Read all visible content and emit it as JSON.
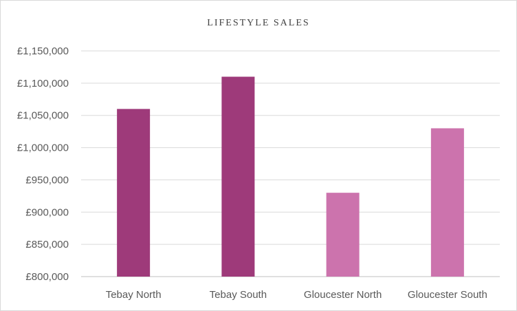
{
  "chart_data": {
    "type": "bar",
    "title": "LIFESTYLE SALES",
    "categories": [
      "Tebay North",
      "Tebay South",
      "Gloucester North",
      "Gloucester South"
    ],
    "values": [
      1060000,
      1110000,
      930000,
      1030000
    ],
    "bar_colors": [
      "#9e3a7a",
      "#9e3a7a",
      "#cc73ad",
      "#cc73ad"
    ],
    "ylim": [
      800000,
      1150000
    ],
    "yticks": [
      800000,
      850000,
      900000,
      950000,
      1000000,
      1050000,
      1100000,
      1150000
    ],
    "ytick_labels": [
      "£800,000",
      "£850,000",
      "£900,000",
      "£950,000",
      "£1,000,000",
      "£1,050,000",
      "£1,100,000",
      "£1,150,000"
    ],
    "grid": true,
    "xlabel": "",
    "ylabel": ""
  }
}
